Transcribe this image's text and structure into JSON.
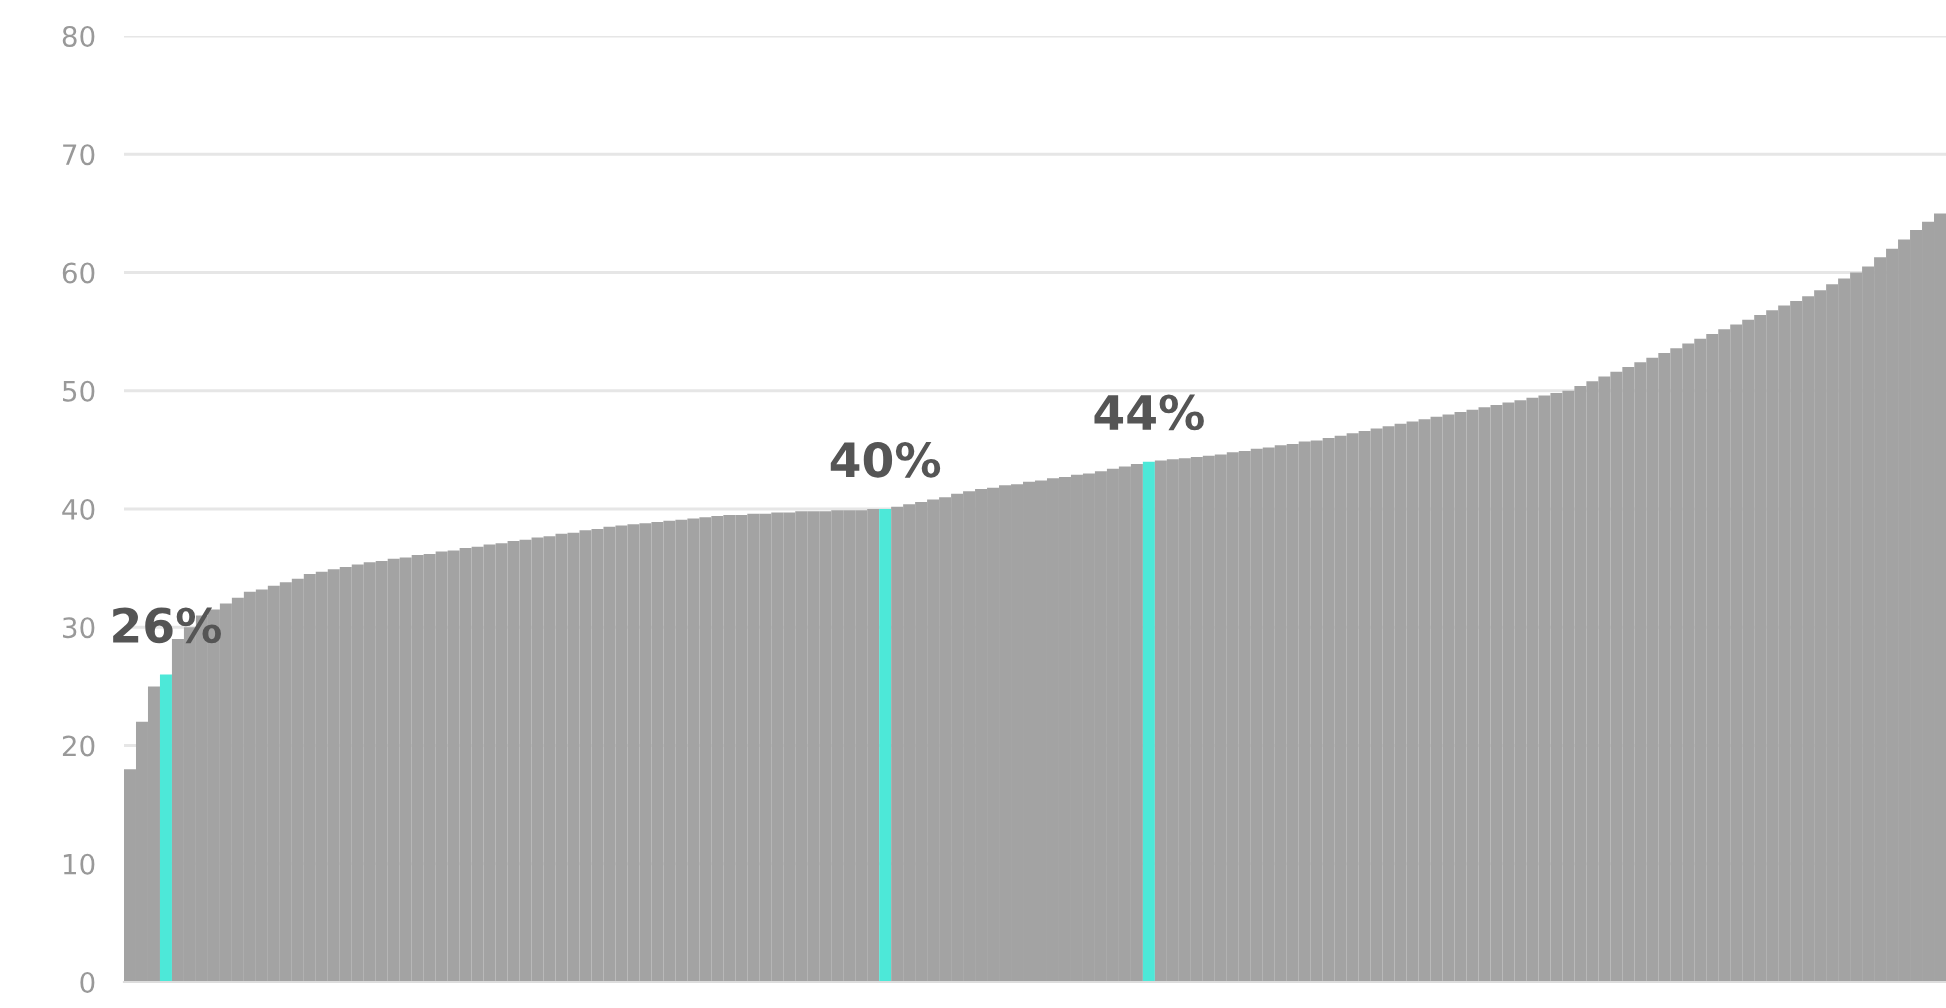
{
  "chart_data": {
    "type": "bar",
    "categories": [
      null,
      null,
      null,
      null,
      null,
      null,
      null,
      null,
      null,
      null,
      null,
      null,
      null,
      null,
      null,
      null,
      null,
      null,
      null,
      null,
      null,
      null,
      null,
      null,
      null,
      null,
      null,
      null,
      null,
      null,
      null,
      null,
      null,
      null,
      null,
      null,
      null,
      null,
      null,
      null,
      null,
      null,
      null,
      null,
      null,
      null,
      null,
      null,
      null,
      null,
      null,
      null,
      null,
      null,
      null,
      null,
      null,
      null,
      null,
      null,
      null,
      null,
      null,
      null,
      null,
      null,
      null,
      null,
      null,
      null,
      null,
      null,
      null,
      null,
      null,
      null,
      null,
      null,
      null,
      null,
      null,
      null,
      null,
      null,
      null,
      null,
      null,
      null,
      null,
      null,
      null,
      null,
      null,
      null,
      null,
      null,
      null,
      null,
      null,
      null,
      null,
      null,
      null,
      null,
      null,
      null,
      null,
      null,
      null,
      null,
      null,
      null,
      null,
      null,
      null,
      null,
      null,
      null,
      null,
      null,
      null,
      null,
      null,
      null,
      null,
      null,
      null,
      null,
      null,
      null,
      null,
      null,
      null,
      null,
      null,
      null,
      null,
      null,
      null,
      null,
      null,
      null,
      null,
      null,
      null,
      null,
      null,
      null,
      null,
      null,
      null,
      null
    ],
    "values": [
      18,
      22,
      25,
      26,
      29,
      30,
      31,
      31.5,
      32,
      32.5,
      33,
      33.2,
      33.5,
      33.8,
      34.1,
      34.5,
      34.7,
      34.9,
      35.1,
      35.3,
      35.5,
      35.6,
      35.8,
      35.9,
      36.1,
      36.2,
      36.4,
      36.5,
      36.7,
      36.8,
      37,
      37.1,
      37.3,
      37.4,
      37.6,
      37.7,
      37.9,
      38,
      38.2,
      38.3,
      38.5,
      38.6,
      38.7,
      38.8,
      38.9,
      39,
      39.1,
      39.2,
      39.3,
      39.4,
      39.5,
      39.5,
      39.6,
      39.6,
      39.7,
      39.7,
      39.8,
      39.8,
      39.8,
      39.9,
      39.9,
      39.9,
      40,
      40,
      40.2,
      40.4,
      40.6,
      40.8,
      41,
      41.3,
      41.5,
      41.7,
      41.8,
      42,
      42.1,
      42.3,
      42.4,
      42.6,
      42.7,
      42.9,
      43,
      43.2,
      43.4,
      43.6,
      43.8,
      44,
      44.1,
      44.2,
      44.3,
      44.4,
      44.5,
      44.6,
      44.8,
      44.9,
      45.1,
      45.2,
      45.4,
      45.5,
      45.7,
      45.8,
      46,
      46.2,
      46.4,
      46.6,
      46.8,
      47,
      47.2,
      47.4,
      47.6,
      47.8,
      48,
      48.2,
      48.4,
      48.6,
      48.8,
      49,
      49.2,
      49.4,
      49.6,
      49.8,
      50,
      50.4,
      50.8,
      51.2,
      51.6,
      52,
      52.4,
      52.8,
      53.2,
      53.6,
      54,
      54.4,
      54.8,
      55.2,
      55.6,
      56,
      56.4,
      56.8,
      57.2,
      57.6,
      58,
      58.5,
      59,
      59.5,
      60,
      60.5,
      61.3,
      62,
      62.8,
      63.6,
      64.3,
      65
    ],
    "colors": [
      "#a3a3a3",
      "#a3a3a3",
      "#a3a3a3",
      "#4de8d8",
      "#a3a3a3",
      "#a3a3a3",
      "#a3a3a3",
      "#a3a3a3",
      "#a3a3a3",
      "#a3a3a3",
      "#a3a3a3",
      "#a3a3a3",
      "#a3a3a3",
      "#a3a3a3",
      "#a3a3a3",
      "#a3a3a3",
      "#a3a3a3",
      "#a3a3a3",
      "#a3a3a3",
      "#a3a3a3",
      "#a3a3a3",
      "#a3a3a3",
      "#a3a3a3",
      "#a3a3a3",
      "#a3a3a3",
      "#a3a3a3",
      "#a3a3a3",
      "#a3a3a3",
      "#a3a3a3",
      "#a3a3a3",
      "#a3a3a3",
      "#a3a3a3",
      "#a3a3a3",
      "#a3a3a3",
      "#a3a3a3",
      "#a3a3a3",
      "#a3a3a3",
      "#a3a3a3",
      "#a3a3a3",
      "#a3a3a3",
      "#a3a3a3",
      "#a3a3a3",
      "#a3a3a3",
      "#a3a3a3",
      "#a3a3a3",
      "#a3a3a3",
      "#a3a3a3",
      "#a3a3a3",
      "#a3a3a3",
      "#a3a3a3",
      "#a3a3a3",
      "#a3a3a3",
      "#a3a3a3",
      "#a3a3a3",
      "#a3a3a3",
      "#a3a3a3",
      "#a3a3a3",
      "#a3a3a3",
      "#a3a3a3",
      "#a3a3a3",
      "#a3a3a3",
      "#a3a3a3",
      "#a3a3a3",
      "#4de8d8",
      "#a3a3a3",
      "#a3a3a3",
      "#a3a3a3",
      "#a3a3a3",
      "#a3a3a3",
      "#a3a3a3",
      "#a3a3a3",
      "#a3a3a3",
      "#a3a3a3",
      "#a3a3a3",
      "#a3a3a3",
      "#a3a3a3",
      "#a3a3a3",
      "#a3a3a3",
      "#a3a3a3",
      "#a3a3a3",
      "#a3a3a3",
      "#a3a3a3",
      "#a3a3a3",
      "#a3a3a3",
      "#a3a3a3",
      "#4de8d8",
      "#a3a3a3",
      "#a3a3a3",
      "#a3a3a3",
      "#a3a3a3",
      "#a3a3a3",
      "#a3a3a3",
      "#a3a3a3",
      "#a3a3a3",
      "#a3a3a3",
      "#a3a3a3",
      "#a3a3a3",
      "#a3a3a3",
      "#a3a3a3",
      "#a3a3a3",
      "#a3a3a3",
      "#a3a3a3",
      "#a3a3a3",
      "#a3a3a3",
      "#a3a3a3",
      "#a3a3a3",
      "#a3a3a3",
      "#a3a3a3",
      "#a3a3a3",
      "#a3a3a3",
      "#a3a3a3",
      "#a3a3a3",
      "#a3a3a3",
      "#a3a3a3",
      "#a3a3a3",
      "#a3a3a3",
      "#a3a3a3",
      "#a3a3a3",
      "#a3a3a3",
      "#a3a3a3",
      "#a3a3a3",
      "#a3a3a3",
      "#a3a3a3",
      "#a3a3a3",
      "#a3a3a3",
      "#a3a3a3",
      "#a3a3a3",
      "#a3a3a3",
      "#a3a3a3",
      "#a3a3a3",
      "#a3a3a3",
      "#a3a3a3",
      "#a3a3a3",
      "#a3a3a3",
      "#a3a3a3",
      "#a3a3a3",
      "#a3a3a3",
      "#a3a3a3",
      "#a3a3a3",
      "#a3a3a3",
      "#a3a3a3",
      "#a3a3a3",
      "#a3a3a3",
      "#a3a3a3",
      "#a3a3a3",
      "#a3a3a3",
      "#a3a3a3",
      "#a3a3a3",
      "#a3a3a3",
      "#a3a3a3",
      "#a3a3a3",
      "#a3a3a3"
    ],
    "value_labels": [
      null,
      null,
      null,
      "26%",
      null,
      null,
      null,
      null,
      null,
      null,
      null,
      null,
      null,
      null,
      null,
      null,
      null,
      null,
      null,
      null,
      null,
      null,
      null,
      null,
      null,
      null,
      null,
      null,
      null,
      null,
      null,
      null,
      null,
      null,
      null,
      null,
      null,
      null,
      null,
      null,
      null,
      null,
      null,
      null,
      null,
      null,
      null,
      null,
      null,
      null,
      null,
      null,
      null,
      null,
      null,
      null,
      null,
      null,
      null,
      null,
      null,
      null,
      null,
      "40%",
      null,
      null,
      null,
      null,
      null,
      null,
      null,
      null,
      null,
      null,
      null,
      null,
      null,
      null,
      null,
      null,
      null,
      null,
      null,
      null,
      null,
      "44%",
      null,
      null,
      null,
      null,
      null,
      null,
      null,
      null,
      null,
      null,
      null,
      null,
      null,
      null,
      null,
      null,
      null,
      null,
      null,
      null,
      null,
      null,
      null,
      null,
      null,
      null,
      null,
      null,
      null,
      null,
      null,
      null,
      null,
      null,
      null,
      null,
      null,
      null,
      null,
      null,
      null,
      null,
      null,
      null,
      null,
      null,
      null,
      null,
      null,
      null,
      null,
      null,
      null,
      null,
      null,
      null,
      null,
      null,
      null,
      null,
      null,
      null,
      null,
      null,
      null,
      null
    ],
    "ylim": [
      0,
      80
    ],
    "yticks": [
      0,
      10,
      20,
      30,
      40,
      50,
      60,
      70,
      80
    ],
    "grid": "y"
  }
}
